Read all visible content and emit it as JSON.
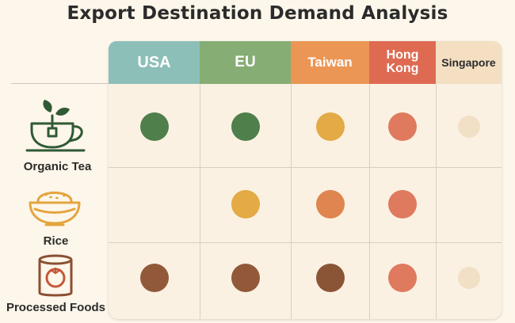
{
  "chart_data": {
    "type": "heatmap",
    "title": "Export Destination Demand Analysis",
    "columns": [
      {
        "label": "USA",
        "color": "#8dbfb9",
        "text_color": "#ffffff"
      },
      {
        "label": "EU",
        "color": "#86ad74",
        "text_color": "#ffffff"
      },
      {
        "label": "Taiwan",
        "color": "#eb9654",
        "text_color": "#ffffff"
      },
      {
        "label": "Hong Kong",
        "lines": [
          "Hong",
          "Kong"
        ],
        "color": "#df6a52",
        "text_color": "#ffffff"
      },
      {
        "label": "Singapore",
        "color": "#f4dfc2",
        "text_color": "#2b2b2b"
      }
    ],
    "rows": [
      {
        "label": "Organic Tea",
        "icon": "tea-cup-icon"
      },
      {
        "label": "Rice",
        "icon": "rice-bowl-icon"
      },
      {
        "label": "Processed Foods",
        "icon": "tomato-can-icon"
      }
    ],
    "cells": [
      [
        "#4f7f4b",
        "#4f7f4b",
        "#e3aa45",
        "#df7a5f",
        "#f1e0c6"
      ],
      [
        null,
        "#e3aa45",
        "#de8550",
        "#df7a5f",
        null
      ],
      [
        "#91593a",
        "#91593a",
        "#8a5536",
        "#df7a5f",
        "#f1e0c6"
      ]
    ],
    "grid": true
  }
}
